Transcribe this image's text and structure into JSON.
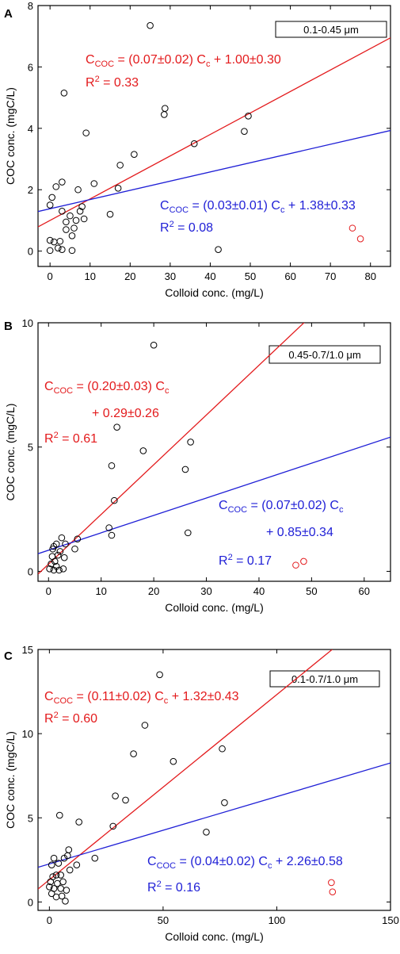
{
  "chart_data": [
    {
      "panel": "A",
      "type": "scatter",
      "xlabel": "Colloid conc. (mg/L)",
      "ylabel": "COC conc. (mgC/L)",
      "xlim": [
        -3,
        85
      ],
      "ylim": [
        -0.5,
        8
      ],
      "xticks": [
        0,
        10,
        20,
        30,
        40,
        50,
        60,
        70,
        80
      ],
      "yticks": [
        0,
        2,
        4,
        6,
        8
      ],
      "legend_box": "0.1-0.45 μm",
      "points_black": [
        [
          0,
          0.02
        ],
        [
          0,
          0.35
        ],
        [
          0,
          1.5
        ],
        [
          0.5,
          1.75
        ],
        [
          1,
          0.3
        ],
        [
          1.5,
          2.1
        ],
        [
          2,
          0.1
        ],
        [
          2.5,
          0.32
        ],
        [
          3,
          0.05
        ],
        [
          3,
          1.3
        ],
        [
          3,
          2.25
        ],
        [
          3.5,
          5.15
        ],
        [
          4,
          0.7
        ],
        [
          4,
          0.95
        ],
        [
          5,
          1.15
        ],
        [
          5.5,
          0.02
        ],
        [
          5.5,
          0.5
        ],
        [
          6,
          0.75
        ],
        [
          6.5,
          1.0
        ],
        [
          7,
          2.0
        ],
        [
          7.5,
          1.3
        ],
        [
          8,
          1.45
        ],
        [
          8.5,
          1.05
        ],
        [
          9,
          3.85
        ],
        [
          11,
          2.2
        ],
        [
          15,
          1.2
        ],
        [
          17,
          2.05
        ],
        [
          17.5,
          2.8
        ],
        [
          21,
          3.15
        ],
        [
          25,
          7.35
        ],
        [
          28.5,
          4.45
        ],
        [
          28.7,
          4.65
        ],
        [
          36,
          3.5
        ],
        [
          42,
          0.05
        ],
        [
          48.5,
          3.9
        ],
        [
          49.5,
          4.4
        ]
      ],
      "points_red": [
        [
          75.5,
          0.75
        ],
        [
          77.5,
          0.4
        ]
      ],
      "fits": [
        {
          "color": "#e31a1c",
          "intercept": 1.0,
          "slope": 0.07,
          "x_range": [
            -3,
            85
          ],
          "eq_main": "C",
          "eq_sub": "COC",
          "eq_rest": " = (0.07±0.02) C",
          "eq_sub2": "c",
          "eq_tail": " + 1.00±0.30",
          "r2_label": "R",
          "r2_sup": "2",
          "r2_value": " = 0.33"
        },
        {
          "color": "#1f1fd6",
          "intercept": 1.38,
          "slope": 0.03,
          "x_range": [
            -3,
            85
          ],
          "eq_main": "C",
          "eq_sub": "COC",
          "eq_rest": " = (0.03±0.01) C",
          "eq_sub2": "c",
          "eq_tail": " + 1.38±0.33",
          "r2_label": "R",
          "r2_sup": "2",
          "r2_value": " = 0.08"
        }
      ]
    },
    {
      "panel": "B",
      "type": "scatter",
      "xlabel": "Colloid conc. (mg/L)",
      "ylabel": "COC conc. (mgC/L)",
      "xlim": [
        -2,
        65
      ],
      "ylim": [
        -0.4,
        10
      ],
      "xticks": [
        0,
        10,
        20,
        30,
        40,
        50,
        60
      ],
      "yticks": [
        0,
        5,
        10
      ],
      "legend_box": "0.45-0.7/1.0 μm",
      "points_black": [
        [
          0.2,
          0.1
        ],
        [
          0.5,
          0.3
        ],
        [
          0.7,
          0.6
        ],
        [
          0.8,
          0.9
        ],
        [
          1,
          0.05
        ],
        [
          1,
          1.0
        ],
        [
          1.2,
          0.4
        ],
        [
          1.5,
          0.2
        ],
        [
          1.5,
          1.1
        ],
        [
          1.8,
          0.65
        ],
        [
          2,
          0.05
        ],
        [
          2.2,
          0.8
        ],
        [
          2.5,
          1.35
        ],
        [
          2.8,
          0.1
        ],
        [
          3,
          0.55
        ],
        [
          3.2,
          1.1
        ],
        [
          5,
          0.9
        ],
        [
          5.5,
          1.3
        ],
        [
          11.5,
          1.75
        ],
        [
          12,
          1.45
        ],
        [
          12,
          4.25
        ],
        [
          12.5,
          2.85
        ],
        [
          13,
          5.8
        ],
        [
          18,
          4.85
        ],
        [
          20,
          9.1
        ],
        [
          26,
          4.1
        ],
        [
          26.5,
          1.55
        ],
        [
          27,
          5.2
        ]
      ],
      "points_red": [
        [
          47,
          0.25
        ],
        [
          48.5,
          0.4
        ]
      ],
      "fits": [
        {
          "color": "#e31a1c",
          "intercept": 0.29,
          "slope": 0.2,
          "x_range": [
            -2,
            48.6
          ],
          "eq_main": "C",
          "eq_sub": "COC",
          "eq_rest": " = (0.20±0.03) C",
          "eq_sub2": "c",
          "eq_tail": "+ 0.29±0.26",
          "r2_label": "R",
          "r2_sup": "2",
          "r2_value": " = 0.61"
        },
        {
          "color": "#1f1fd6",
          "intercept": 0.85,
          "slope": 0.07,
          "x_range": [
            -2,
            65
          ],
          "eq_main": "C",
          "eq_sub": "COC",
          "eq_rest": " = (0.07±0.02) C",
          "eq_sub2": "c",
          "eq_tail": "+ 0.85±0.34",
          "r2_label": "R",
          "r2_sup": "2",
          "r2_value": " = 0.17"
        }
      ]
    },
    {
      "panel": "C",
      "type": "scatter",
      "xlabel": "Colloid conc. (mg/L)",
      "ylabel": "COC conc. (mgC/L)",
      "xlim": [
        -5,
        150
      ],
      "ylim": [
        -0.5,
        15
      ],
      "xticks": [
        0,
        50,
        100,
        150
      ],
      "yticks": [
        0,
        5,
        10,
        15
      ],
      "legend_box": "0.1-0.7/1.0 μm",
      "points_black": [
        [
          0,
          0.9
        ],
        [
          0.5,
          1.2
        ],
        [
          1,
          0.5
        ],
        [
          1,
          2.2
        ],
        [
          1.5,
          1.5
        ],
        [
          2,
          0.8
        ],
        [
          2,
          2.6
        ],
        [
          3,
          0.3
        ],
        [
          3,
          1.6
        ],
        [
          3.5,
          1.1
        ],
        [
          4,
          2.3
        ],
        [
          4.5,
          5.15
        ],
        [
          5,
          0.8
        ],
        [
          5,
          1.6
        ],
        [
          5.5,
          0.35
        ],
        [
          6,
          1.2
        ],
        [
          6.5,
          2.6
        ],
        [
          7,
          0.05
        ],
        [
          7.5,
          0.7
        ],
        [
          8,
          2.75
        ],
        [
          8.5,
          3.1
        ],
        [
          9,
          1.9
        ],
        [
          12,
          2.2
        ],
        [
          13,
          4.75
        ],
        [
          20,
          2.6
        ],
        [
          28,
          4.5
        ],
        [
          29,
          6.3
        ],
        [
          33.5,
          6.05
        ],
        [
          37,
          8.8
        ],
        [
          42,
          10.5
        ],
        [
          48.5,
          13.5
        ],
        [
          54.5,
          8.35
        ],
        [
          69,
          4.15
        ],
        [
          76,
          9.1
        ],
        [
          77,
          5.9
        ]
      ],
      "points_red": [
        [
          124,
          1.15
        ],
        [
          124.5,
          0.6
        ]
      ],
      "fits": [
        {
          "color": "#e31a1c",
          "intercept": 1.32,
          "slope": 0.11,
          "x_range": [
            -5,
            124.4
          ],
          "eq_main": "C",
          "eq_sub": "COC",
          "eq_rest": " = (0.11±0.02) C",
          "eq_sub2": "c",
          "eq_tail": " + 1.32±0.43",
          "r2_label": "R",
          "r2_sup": "2",
          "r2_value": " = 0.60"
        },
        {
          "color": "#1f1fd6",
          "intercept": 2.26,
          "slope": 0.04,
          "x_range": [
            -5,
            150
          ],
          "eq_main": "C",
          "eq_sub": "COC",
          "eq_rest": " = (0.04±0.02) C",
          "eq_sub2": "c",
          "eq_tail": " + 2.26±0.58",
          "r2_label": "R",
          "r2_sup": "2",
          "r2_value": " = 0.16"
        }
      ]
    }
  ]
}
